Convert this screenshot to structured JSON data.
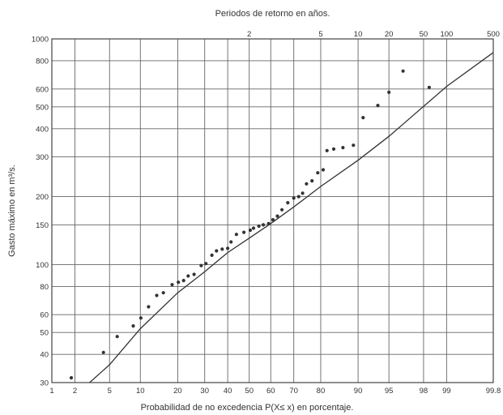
{
  "chart_data": {
    "type": "scatter",
    "title": "",
    "top_axis_label": "Periodos de retorno en años.",
    "xlabel": "Probabilidad de no excedencia P(X≤ x) en porcentaje.",
    "ylabel": "Gasto máximo en m³/s.",
    "x_scale": "normal-probability (%)",
    "y_scale": "log",
    "xlim": [
      1,
      99.8
    ],
    "ylim": [
      30,
      1000
    ],
    "grid": true,
    "x_ticks": [
      "1",
      "2",
      "5",
      "10",
      "20",
      "30",
      "40",
      "50",
      "60",
      "70",
      "80",
      "90",
      "95",
      "98",
      "99",
      "99.8"
    ],
    "top_ticks": [
      "2",
      "5",
      "10",
      "20",
      "50",
      "100",
      "500"
    ],
    "y_ticks": [
      "30",
      "40",
      "50",
      "60",
      "80",
      "100",
      "150",
      "200",
      "300",
      "400",
      "500",
      "600",
      "800",
      "1000"
    ],
    "series": [
      {
        "kind": "points",
        "x": [
          1.8,
          4.3,
          6.0,
          8.6,
          10.1,
          11.8,
          13.8,
          15.6,
          18.2,
          20.2,
          22.0,
          23.6,
          25.8,
          28.6,
          30.5,
          33.0,
          35.0,
          37.5,
          40.0,
          41.5,
          44.0,
          47.5,
          50.5,
          52.0,
          54.5,
          56.6,
          59.0,
          61.0,
          63.0,
          65.0,
          67.5,
          70.0,
          72.0,
          73.5,
          75.0,
          77.0,
          79.0,
          80.8,
          82.0,
          84.0,
          86.5,
          89.0,
          91.0,
          93.5,
          95.0,
          96.5,
          98.3
        ],
        "y": [
          31.5,
          40.8,
          48,
          53.5,
          58,
          65,
          73,
          75,
          81.5,
          83.5,
          85,
          89,
          90.5,
          99,
          101,
          110,
          115,
          117,
          118,
          126,
          136,
          139,
          142,
          145,
          148,
          150,
          152,
          158,
          164,
          175,
          188,
          197,
          200,
          207,
          228,
          235,
          255,
          263,
          320,
          325,
          330,
          338,
          448,
          507,
          580,
          720,
          610
        ]
      },
      {
        "kind": "fitted-curve",
        "x": [
          3.0,
          5.0,
          10.0,
          20.0,
          30.0,
          40.0,
          50.0,
          60.0,
          70.0,
          80.0,
          90.0,
          95.0,
          98.0,
          99.0,
          99.8
        ],
        "y": [
          30,
          36,
          52,
          75,
          93,
          113,
          131,
          152,
          180,
          222,
          290,
          370,
          502,
          616,
          870
        ]
      }
    ]
  }
}
